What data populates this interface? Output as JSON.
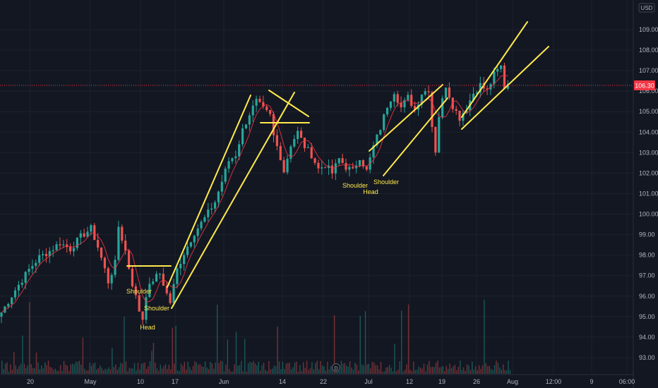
{
  "chart_data": {
    "type": "candlestick",
    "currency": "USD",
    "last_price": "106.30",
    "ylim": [
      92.5,
      109.9
    ],
    "y_ticks": [
      "109.00",
      "108.00",
      "107.00",
      "106.00",
      "105.00",
      "104.00",
      "103.00",
      "102.00",
      "101.00",
      "100.00",
      "99.00",
      "98.00",
      "97.00",
      "96.00",
      "95.00",
      "94.00",
      "93.00"
    ],
    "x_ticks": [
      "20",
      "May",
      "10",
      "17",
      "Jun",
      "14",
      "22",
      "Jul",
      "12",
      "19",
      "26",
      "Aug",
      "12:00",
      "9",
      "06:00"
    ],
    "annotations": [
      "Shoulder",
      "Shoulder",
      "Head",
      "Shoulder",
      "Head",
      "Shoulder"
    ],
    "pivots": [
      [
        0,
        95.2
      ],
      [
        4,
        96.3
      ],
      [
        8,
        97.3
      ],
      [
        11,
        97.9
      ],
      [
        14,
        98.2
      ],
      [
        17,
        98.6
      ],
      [
        20,
        98.3
      ],
      [
        23,
        98.9
      ],
      [
        26,
        99.3
      ],
      [
        28,
        98.4
      ],
      [
        30,
        97.3
      ],
      [
        31,
        96.7
      ],
      [
        33,
        97.6
      ],
      [
        34,
        99.4
      ],
      [
        36,
        98.2
      ],
      [
        38,
        96.6
      ],
      [
        40,
        95.3
      ],
      [
        41,
        94.9
      ],
      [
        42,
        96.1
      ],
      [
        44,
        96.8
      ],
      [
        46,
        97.1
      ],
      [
        48,
        96.1
      ],
      [
        49,
        95.7
      ],
      [
        51,
        97.3
      ],
      [
        53,
        98.1
      ],
      [
        56,
        99.1
      ],
      [
        59,
        99.8
      ],
      [
        62,
        100.6
      ],
      [
        64,
        101.6
      ],
      [
        66,
        102.6
      ],
      [
        68,
        102.9
      ],
      [
        70,
        104.1
      ],
      [
        72,
        104.9
      ],
      [
        74,
        105.5
      ],
      [
        76,
        105.1
      ],
      [
        78,
        104.8
      ],
      [
        79,
        103.8
      ],
      [
        81,
        102.8
      ],
      [
        82,
        102.1
      ],
      [
        84,
        103.4
      ],
      [
        86,
        104.0
      ],
      [
        88,
        103.3
      ],
      [
        90,
        102.9
      ],
      [
        92,
        102.2
      ],
      [
        94,
        102.4
      ],
      [
        96,
        102.0
      ],
      [
        98,
        102.7
      ],
      [
        100,
        102.3
      ],
      [
        102,
        102.1
      ],
      [
        104,
        102.8
      ],
      [
        106,
        102.1
      ],
      [
        108,
        103.3
      ],
      [
        110,
        104.2
      ],
      [
        112,
        105.3
      ],
      [
        114,
        106.0
      ],
      [
        116,
        105.2
      ],
      [
        118,
        105.7
      ],
      [
        120,
        105.1
      ],
      [
        122,
        105.9
      ],
      [
        124,
        106.1
      ],
      [
        125,
        104.3
      ],
      [
        126,
        103.1
      ],
      [
        127,
        104.8
      ],
      [
        129,
        106.3
      ],
      [
        131,
        105.3
      ],
      [
        133,
        104.7
      ],
      [
        135,
        105.2
      ],
      [
        137,
        105.9
      ],
      [
        139,
        106.3
      ],
      [
        141,
        106.0
      ],
      [
        143,
        106.8
      ],
      [
        145,
        107.2
      ],
      [
        146,
        106.2
      ],
      [
        147,
        106.4
      ]
    ]
  }
}
